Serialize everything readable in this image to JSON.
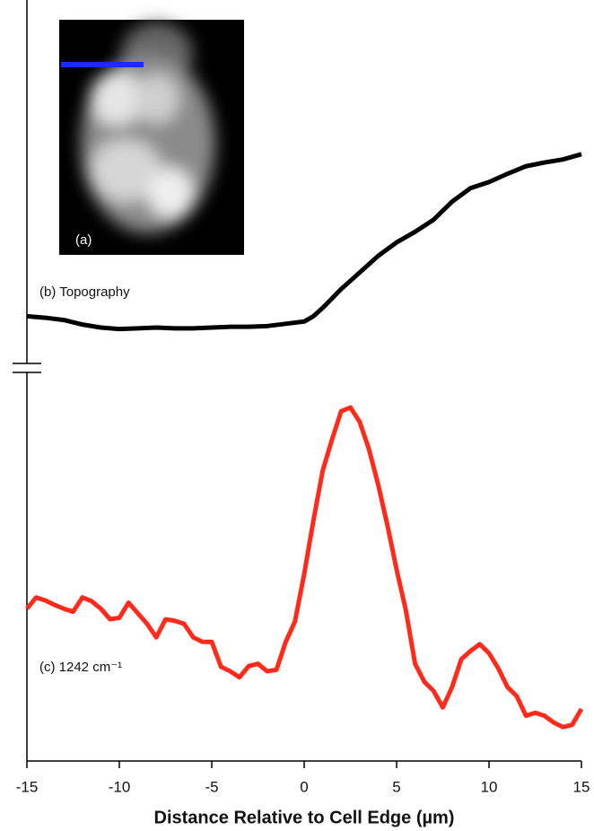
{
  "chart_data": {
    "type": "line",
    "x_label": "Distance Relative to Cell Edge (µm)",
    "inset_label": "(a)",
    "xlim": [
      -15,
      15
    ],
    "xticks": [
      -15,
      -10,
      -5,
      0,
      5,
      10,
      15
    ],
    "ylim": [
      0,
      100
    ],
    "series": [
      {
        "name": "(b) Topography",
        "color": "#000000",
        "x": [
          -15,
          -14,
          -13,
          -12,
          -11,
          -10,
          -9,
          -8,
          -7,
          -6,
          -5,
          -4,
          -3,
          -2,
          -1,
          0,
          0.5,
          1,
          2,
          3,
          4,
          5,
          6,
          7,
          8,
          9,
          10,
          11,
          12,
          13,
          14,
          15
        ],
        "values": [
          59.0,
          58.8,
          58.5,
          57.9,
          57.5,
          57.3,
          57.4,
          57.5,
          57.4,
          57.4,
          57.5,
          57.6,
          57.6,
          57.7,
          58.0,
          58.3,
          59.0,
          60.1,
          62.6,
          64.8,
          67.0,
          68.8,
          70.2,
          71.8,
          74.2,
          76.0,
          76.8,
          77.9,
          78.9,
          79.4,
          79.8,
          80.5
        ]
      },
      {
        "name": "(c) 1242 cm⁻¹",
        "color": "#ff2a1a",
        "x": [
          -15,
          -14.5,
          -14,
          -13.5,
          -13,
          -12.5,
          -12,
          -11.5,
          -11,
          -10.5,
          -10,
          -9.5,
          -9,
          -8.5,
          -8,
          -7.5,
          -7,
          -6.5,
          -6,
          -5.5,
          -5,
          -4.5,
          -4,
          -3.5,
          -3,
          -2.5,
          -2,
          -1.5,
          -1,
          -0.5,
          0,
          0.5,
          1,
          1.5,
          2,
          2.5,
          3,
          3.5,
          4,
          4.5,
          5,
          5.5,
          6,
          6.5,
          7,
          7.5,
          8,
          8.5,
          9,
          9.5,
          10,
          10.5,
          11,
          11.5,
          12,
          12.5,
          13,
          13.5,
          14,
          14.5,
          15
        ],
        "values": [
          20.2,
          21.7,
          21.3,
          20.7,
          20.2,
          19.8,
          21.7,
          21.2,
          20.2,
          18.8,
          19.0,
          21.0,
          19.6,
          18.2,
          16.4,
          18.8,
          18.6,
          18.2,
          16.4,
          15.8,
          15.8,
          12.5,
          11.9,
          11.1,
          12.6,
          12.9,
          11.9,
          12.1,
          15.8,
          18.5,
          24.8,
          31.9,
          38.5,
          42.6,
          46.4,
          46.9,
          45.0,
          41.4,
          36.7,
          31.3,
          25.4,
          20.0,
          12.9,
          10.5,
          9.3,
          7.1,
          9.8,
          13.5,
          14.6,
          15.5,
          14.3,
          12.3,
          9.8,
          8.6,
          6.0,
          6.4,
          6.0,
          5.1,
          4.5,
          4.8,
          6.9
        ]
      }
    ]
  }
}
